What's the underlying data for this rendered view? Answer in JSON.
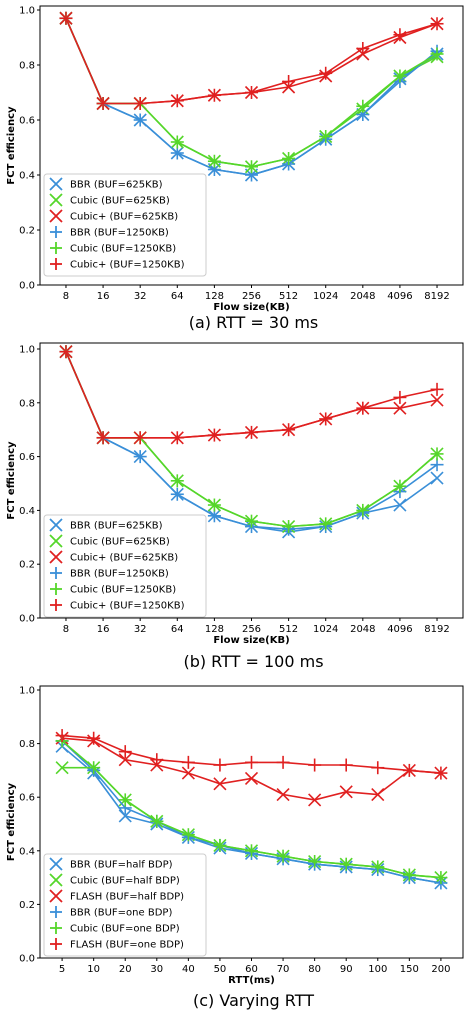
{
  "panels": [
    {
      "caption": "(a) RTT = 30 ms",
      "chart_data": {
        "type": "line",
        "categories": [
          "8",
          "16",
          "32",
          "64",
          "128",
          "256",
          "512",
          "1024",
          "2048",
          "4096",
          "8192"
        ],
        "xlabel": "Flow size(KB)",
        "ylabel": "FCT efficiency",
        "ylim": [
          0,
          1.0
        ],
        "yticks": [
          "0.0",
          "0.2",
          "0.4",
          "0.6",
          "0.8",
          "1.0"
        ],
        "grid": false,
        "legend_position": "lower-left",
        "series": [
          {
            "name": "BBR (BUF=625KB)",
            "marker": "x",
            "color": "#3a8fd8",
            "values": [
              0.97,
              0.66,
              0.6,
              0.48,
              0.42,
              0.4,
              0.44,
              0.53,
              0.62,
              0.75,
              0.84
            ]
          },
          {
            "name": "Cubic (BUF=625KB)",
            "marker": "x",
            "color": "#55d62a",
            "values": [
              0.97,
              0.66,
              0.66,
              0.52,
              0.45,
              0.43,
              0.46,
              0.54,
              0.64,
              0.76,
              0.83
            ]
          },
          {
            "name": "Cubic+ (BUF=625KB)",
            "marker": "x",
            "color": "#e02020",
            "values": [
              0.97,
              0.66,
              0.66,
              0.67,
              0.69,
              0.7,
              0.72,
              0.76,
              0.84,
              0.9,
              0.95
            ]
          },
          {
            "name": "BBR (BUF=1250KB)",
            "marker": "+",
            "color": "#3a8fd8",
            "values": [
              0.97,
              0.66,
              0.6,
              0.48,
              0.42,
              0.4,
              0.44,
              0.53,
              0.62,
              0.74,
              0.85
            ]
          },
          {
            "name": "Cubic (BUF=1250KB)",
            "marker": "+",
            "color": "#55d62a",
            "values": [
              0.97,
              0.66,
              0.66,
              0.52,
              0.45,
              0.43,
              0.46,
              0.54,
              0.65,
              0.76,
              0.84
            ]
          },
          {
            "name": "Cubic+ (BUF=1250KB)",
            "marker": "+",
            "color": "#e02020",
            "values": [
              0.97,
              0.66,
              0.66,
              0.67,
              0.69,
              0.7,
              0.74,
              0.77,
              0.86,
              0.91,
              0.95
            ]
          }
        ]
      }
    },
    {
      "caption": "(b) RTT = 100 ms",
      "chart_data": {
        "type": "line",
        "categories": [
          "8",
          "16",
          "32",
          "64",
          "128",
          "256",
          "512",
          "1024",
          "2048",
          "4096",
          "8192"
        ],
        "xlabel": "Flow size(KB)",
        "ylabel": "FCT efficiency",
        "ylim": [
          0,
          1.0
        ],
        "yticks": [
          "0.0",
          "0.2",
          "0.4",
          "0.6",
          "0.8",
          "1.0"
        ],
        "grid": false,
        "legend_position": "lower-left",
        "series": [
          {
            "name": "BBR (BUF=625KB)",
            "marker": "x",
            "color": "#3a8fd8",
            "values": [
              0.99,
              0.67,
              0.6,
              0.46,
              0.38,
              0.34,
              0.32,
              0.34,
              0.39,
              0.42,
              0.52
            ]
          },
          {
            "name": "Cubic (BUF=625KB)",
            "marker": "x",
            "color": "#55d62a",
            "values": [
              0.99,
              0.67,
              0.67,
              0.51,
              0.42,
              0.36,
              0.34,
              0.35,
              0.4,
              0.49,
              0.61
            ]
          },
          {
            "name": "Cubic+ (BUF=625KB)",
            "marker": "x",
            "color": "#e02020",
            "values": [
              0.99,
              0.67,
              0.67,
              0.67,
              0.68,
              0.69,
              0.7,
              0.74,
              0.78,
              0.78,
              0.81
            ]
          },
          {
            "name": "BBR (BUF=1250KB)",
            "marker": "+",
            "color": "#3a8fd8",
            "values": [
              0.99,
              0.67,
              0.6,
              0.46,
              0.38,
              0.34,
              0.33,
              0.34,
              0.39,
              0.47,
              0.57
            ]
          },
          {
            "name": "Cubic (BUF=1250KB)",
            "marker": "+",
            "color": "#55d62a",
            "values": [
              0.99,
              0.67,
              0.67,
              0.51,
              0.42,
              0.36,
              0.34,
              0.35,
              0.4,
              0.49,
              0.61
            ]
          },
          {
            "name": "Cubic+ (BUF=1250KB)",
            "marker": "+",
            "color": "#e02020",
            "values": [
              0.99,
              0.67,
              0.67,
              0.67,
              0.68,
              0.69,
              0.7,
              0.74,
              0.78,
              0.82,
              0.85
            ]
          }
        ]
      }
    },
    {
      "caption": "(c) Varying RTT",
      "chart_data": {
        "type": "line",
        "categories": [
          "5",
          "10",
          "20",
          "30",
          "40",
          "50",
          "60",
          "70",
          "80",
          "90",
          "100",
          "150",
          "200"
        ],
        "xlabel": "RTT(ms)",
        "ylabel": "FCT efficiency",
        "ylim": [
          0,
          1.0
        ],
        "yticks": [
          "0.0",
          "0.2",
          "0.4",
          "0.6",
          "0.8",
          "1.0"
        ],
        "grid": false,
        "legend_position": "lower-left",
        "series": [
          {
            "name": "BBR (BUF=half BDP)",
            "marker": "x",
            "color": "#3a8fd8",
            "values": [
              0.79,
              0.69,
              0.53,
              0.5,
              0.45,
              0.41,
              0.39,
              0.37,
              0.35,
              0.34,
              0.33,
              0.3,
              0.28
            ]
          },
          {
            "name": "Cubic (BUF=half BDP)",
            "marker": "x",
            "color": "#55d62a",
            "values": [
              0.71,
              0.71,
              0.59,
              0.51,
              0.46,
              0.42,
              0.4,
              0.38,
              0.36,
              0.35,
              0.34,
              0.31,
              0.3
            ]
          },
          {
            "name": "FLASH (BUF=half BDP)",
            "marker": "x",
            "color": "#e02020",
            "values": [
              0.82,
              0.81,
              0.74,
              0.72,
              0.69,
              0.65,
              0.67,
              0.61,
              0.59,
              0.62,
              0.61,
              0.7,
              0.69
            ]
          },
          {
            "name": "BBR (BUF=one BDP)",
            "marker": "+",
            "color": "#3a8fd8",
            "values": [
              0.81,
              0.7,
              0.56,
              0.51,
              0.45,
              0.42,
              0.39,
              0.37,
              0.35,
              0.34,
              0.33,
              0.3,
              0.28
            ]
          },
          {
            "name": "Cubic (BUF=one BDP)",
            "marker": "+",
            "color": "#55d62a",
            "values": [
              0.81,
              0.71,
              0.59,
              0.51,
              0.46,
              0.42,
              0.4,
              0.38,
              0.36,
              0.35,
              0.34,
              0.31,
              0.3
            ]
          },
          {
            "name": "FLASH (BUF=one BDP)",
            "marker": "+",
            "color": "#e02020",
            "values": [
              0.83,
              0.82,
              0.77,
              0.74,
              0.73,
              0.72,
              0.73,
              0.73,
              0.72,
              0.72,
              0.71,
              0.7,
              0.69
            ]
          }
        ]
      }
    }
  ]
}
